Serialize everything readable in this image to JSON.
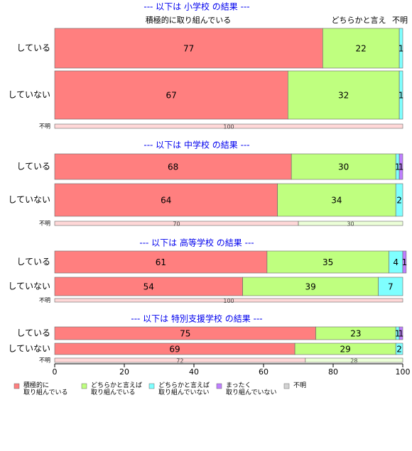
{
  "chart_data": [
    {
      "type": "bar",
      "title": "--- 以下は 小学校 の結果 ---",
      "column_labels": [
        "積極的に取り組んでいる",
        "どちらかと言え",
        "不明"
      ],
      "categories": [
        "している",
        "していない",
        "不明"
      ],
      "series": [
        {
          "name": "積極的に\n取り組んでいる",
          "color": "#ff7f7f",
          "values": [
            77,
            67,
            100
          ]
        },
        {
          "name": "どちらかと言えば\n取り組んでいる",
          "color": "#bfff7f",
          "values": [
            22,
            32,
            0
          ]
        },
        {
          "name": "どちらかと言えば\n取り組んでいない",
          "color": "#7fffff",
          "values": [
            1,
            1,
            0
          ]
        },
        {
          "name": "まったく\n取り組んでいない",
          "color": "#bf7fff",
          "values": [
            0,
            0,
            0
          ]
        },
        {
          "name": "不明",
          "color": "#d3d3d3",
          "values": [
            0,
            0,
            0
          ]
        }
      ]
    },
    {
      "type": "bar",
      "title": "--- 以下は 中学校 の結果 ---",
      "categories": [
        "している",
        "していない",
        "不明"
      ],
      "series": [
        {
          "name": "積極的に\n取り組んでいる",
          "color": "#ff7f7f",
          "values": [
            68,
            64,
            70
          ]
        },
        {
          "name": "どちらかと言えば\n取り組んでいる",
          "color": "#bfff7f",
          "values": [
            30,
            34,
            30
          ]
        },
        {
          "name": "どちらかと言えば\n取り組んでいない",
          "color": "#7fffff",
          "values": [
            1,
            2,
            0
          ]
        },
        {
          "name": "まったく\n取り組んでいない",
          "color": "#bf7fff",
          "values": [
            1,
            0,
            0
          ]
        },
        {
          "name": "不明",
          "color": "#d3d3d3",
          "values": [
            0,
            0,
            0
          ]
        }
      ]
    },
    {
      "type": "bar",
      "title": "--- 以下は 高等学校 の結果 ---",
      "categories": [
        "している",
        "していない",
        "不明"
      ],
      "series": [
        {
          "name": "積極的に\n取り組んでいる",
          "color": "#ff7f7f",
          "values": [
            61,
            54,
            100
          ]
        },
        {
          "name": "どちらかと言えば\n取り組んでいる",
          "color": "#bfff7f",
          "values": [
            35,
            39,
            0
          ]
        },
        {
          "name": "どちらかと言えば\n取り組んでいない",
          "color": "#7fffff",
          "values": [
            4,
            7,
            0
          ]
        },
        {
          "name": "まったく\n取り組んでいない",
          "color": "#bf7fff",
          "values": [
            1,
            0,
            0
          ]
        },
        {
          "name": "不明",
          "color": "#d3d3d3",
          "values": [
            0,
            0,
            0
          ]
        }
      ]
    },
    {
      "type": "bar",
      "title": "--- 以下は 特別支援学校 の結果 ---",
      "categories": [
        "している",
        "していない",
        "不明"
      ],
      "series": [
        {
          "name": "積極的に\n取り組んでいる",
          "color": "#ff7f7f",
          "values": [
            75,
            69,
            72
          ]
        },
        {
          "name": "どちらかと言えば\n取り組んでいる",
          "color": "#bfff7f",
          "values": [
            23,
            29,
            28
          ]
        },
        {
          "name": "どちらかと言えば\n取り組んでいない",
          "color": "#7fffff",
          "values": [
            1,
            2,
            0
          ]
        },
        {
          "name": "まったく\n取り組んでいない",
          "color": "#bf7fff",
          "values": [
            1,
            0,
            0
          ]
        },
        {
          "name": "不明",
          "color": "#d3d3d3",
          "values": [
            0,
            0,
            0
          ]
        }
      ],
      "xlim": [
        0,
        100
      ],
      "xticks": [
        0,
        20,
        40,
        60,
        80,
        100
      ]
    }
  ]
}
